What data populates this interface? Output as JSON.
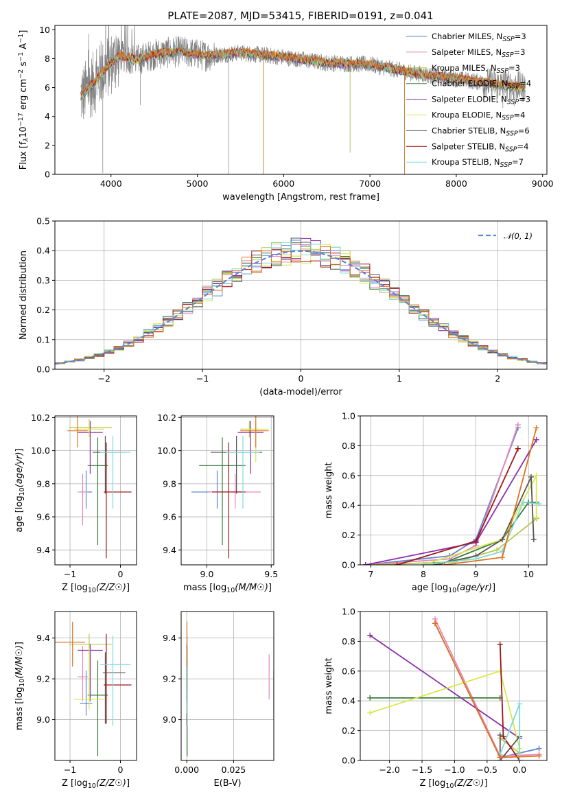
{
  "figure": {
    "title": "PLATE=2087, MJD=53415, FIBERID=0191, z=0.041"
  },
  "colors": {
    "Chabrier MILES": "#5b84d6",
    "Salpeter MILES": "#e887b5",
    "Kroupa MILES": "#b5c94a",
    "Chabrier ELODIE": "#3a7a3a",
    "Salpeter ELODIE": "#8d2ca8",
    "Kroupa ELODIE": "#d7e84a",
    "Chabrier STELIB": "#555555",
    "Salpeter STELIB": "#a01616",
    "Kroupa STELIB": "#7fd9d9",
    "data": "#808080",
    "extra_orange": "#e0701c"
  },
  "chart_data": [
    {
      "id": "spectrum",
      "type": "line",
      "title": "PLATE=2087, MJD=53415, FIBERID=0191, z=0.041",
      "xlabel": "wavelength [Angstrom, rest frame]",
      "ylabel": "Flux [f_λ10^-17 erg cm^-2 s^-1 A^-1]",
      "xlim": [
        3350,
        9050
      ],
      "ylim": [
        0,
        10.3
      ],
      "xticks": [
        "4000",
        "5000",
        "6000",
        "7000",
        "8000",
        "9000"
      ],
      "yticks": [
        "0",
        "2",
        "4",
        "6",
        "8",
        "10"
      ],
      "legend_position": "top-right",
      "legend": [
        "Chabrier MILES, N_SSP=3",
        "Salpeter MILES, N_SSP=3",
        "Kroupa MILES, N_SSP=3",
        "Chabrier ELODIE, N_SSP=4",
        "Salpeter ELODIE, N_SSP=3",
        "Kroupa ELODIE, N_SSP=4",
        "Chabrier STELIB, N_SSP=6",
        "Salpeter STELIB, N_SSP=4",
        "Kroupa STELIB, N_SSP=7"
      ],
      "continuum_points": [
        [
          3650,
          5.4
        ],
        [
          3800,
          6.3
        ],
        [
          3950,
          7.4
        ],
        [
          4100,
          8.2
        ],
        [
          4300,
          7.9
        ],
        [
          4500,
          8.3
        ],
        [
          4800,
          8.5
        ],
        [
          5100,
          8.2
        ],
        [
          5500,
          8.4
        ],
        [
          6000,
          8.1
        ],
        [
          6500,
          7.7
        ],
        [
          7000,
          7.6
        ],
        [
          7500,
          7.0
        ],
        [
          8000,
          6.6
        ],
        [
          8500,
          6.2
        ],
        [
          8800,
          6.0
        ]
      ],
      "dips": [
        [
          3905,
          0.1
        ],
        [
          4340,
          4.8
        ],
        [
          5365,
          0.0
        ],
        [
          5765,
          0.0
        ],
        [
          6770,
          1.5
        ],
        [
          7400,
          0.0
        ],
        [
          8470,
          5.0
        ],
        [
          8540,
          4.6
        ],
        [
          8670,
          4.7
        ]
      ]
    },
    {
      "id": "residuals",
      "type": "histogram",
      "xlabel": "(data-model)/error",
      "ylabel": "Normed distribution",
      "xlim": [
        -2.5,
        2.5
      ],
      "ylim": [
        0,
        0.5
      ],
      "xticks": [
        "−2",
        "−1",
        "0",
        "1",
        "2"
      ],
      "yticks": [
        "0.0",
        "0.1",
        "0.2",
        "0.3",
        "0.4",
        "0.5"
      ],
      "bin_width": 0.1,
      "legend_position": "top-right",
      "legend": [
        "𝒩(0, 1)"
      ],
      "reference": "N(0,1) gaussian"
    },
    {
      "id": "age_vs_Z",
      "type": "errorbar",
      "xlabel": "Z [log10(Z/Z☉)]",
      "ylabel": "age [log10(age/yr)]",
      "xlim": [
        -1.3,
        0.32
      ],
      "ylim": [
        9.31,
        10.21
      ],
      "xticks": [
        "−1",
        "0"
      ],
      "yticks": [
        "9.4",
        "9.6",
        "9.8",
        "10.0",
        "10.2"
      ],
      "points": [
        {
          "model": "Chabrier MILES",
          "x": -0.68,
          "xerr": [
            0.12,
            0.12
          ],
          "y": 9.75,
          "yerr": [
            0.1,
            0.13
          ]
        },
        {
          "model": "Salpeter MILES",
          "x": -0.75,
          "xerr": [
            0.1,
            0.1
          ],
          "y": 9.75,
          "yerr": [
            0.2,
            0.11
          ]
        },
        {
          "model": "Kroupa MILES",
          "x": -0.62,
          "xerr": [
            0.4,
            0.45
          ],
          "y": 10.14,
          "yerr": [
            0.05,
            0.05
          ]
        },
        {
          "model": "Chabrier ELODIE",
          "x": -0.45,
          "xerr": [
            0.2,
            0.2
          ],
          "y": 9.91,
          "yerr": [
            0.48,
            0.17
          ]
        },
        {
          "model": "Salpeter ELODIE",
          "x": -0.6,
          "xerr": [
            0.25,
            0.25
          ],
          "y": 10.11,
          "yerr": [
            0.25,
            0.07
          ]
        },
        {
          "model": "Kroupa ELODIE",
          "x": -0.62,
          "xerr": [
            0.3,
            0.3
          ],
          "y": 10.13,
          "yerr": [
            0.05,
            0.05
          ]
        },
        {
          "model": "Chabrier STELIB",
          "x": -0.3,
          "xerr": [
            0.25,
            0.4
          ],
          "y": 9.99,
          "yerr": [
            0.25,
            0.1
          ]
        },
        {
          "model": "Salpeter STELIB",
          "x": -0.28,
          "xerr": [
            0.05,
            0.5
          ],
          "y": 9.75,
          "yerr": [
            0.4,
            0.3
          ]
        },
        {
          "model": "Kroupa STELIB",
          "x": -0.15,
          "xerr": [
            0.25,
            0.35
          ],
          "y": 9.99,
          "yerr": [
            0.34,
            0.1
          ]
        },
        {
          "model": "extra_orange",
          "x": -0.85,
          "xerr": [
            0.2,
            0.2
          ],
          "y": 10.12,
          "yerr": [
            0.1,
            0.1
          ]
        }
      ]
    },
    {
      "id": "age_vs_mass",
      "type": "errorbar",
      "xlabel": "mass [log10(M/M☉)]",
      "ylabel": "",
      "xlim": [
        8.8,
        9.52
      ],
      "ylim": [
        9.31,
        10.21
      ],
      "xticks": [
        "9.0",
        "9.5"
      ],
      "yticks": [
        "9.4",
        "9.6",
        "9.8",
        "10.0",
        "10.2"
      ],
      "points": [
        {
          "model": "Chabrier MILES",
          "x": 9.08,
          "xerr": [
            0.2,
            0.2
          ],
          "y": 9.75,
          "yerr": [
            0.1,
            0.13
          ]
        },
        {
          "model": "Salpeter MILES",
          "x": 9.22,
          "xerr": [
            0.2,
            0.2
          ],
          "y": 9.75,
          "yerr": [
            0.1,
            0.11
          ]
        },
        {
          "model": "Kroupa MILES",
          "x": 9.33,
          "xerr": [
            0.07,
            0.07
          ],
          "y": 10.13,
          "yerr": [
            0.05,
            0.05
          ]
        },
        {
          "model": "Chabrier ELODIE",
          "x": 9.12,
          "xerr": [
            0.18,
            0.18
          ],
          "y": 9.91,
          "yerr": [
            0.48,
            0.17
          ]
        },
        {
          "model": "Salpeter ELODIE",
          "x": 9.34,
          "xerr": [
            0.1,
            0.1
          ],
          "y": 10.11,
          "yerr": [
            0.25,
            0.07
          ]
        },
        {
          "model": "Kroupa ELODIE",
          "x": 9.38,
          "xerr": [
            0.1,
            0.1
          ],
          "y": 10.13,
          "yerr": [
            0.2,
            0.05
          ]
        },
        {
          "model": "Chabrier STELIB",
          "x": 9.23,
          "xerr": [
            0.2,
            0.2
          ],
          "y": 9.99,
          "yerr": [
            0.25,
            0.1
          ]
        },
        {
          "model": "Salpeter STELIB",
          "x": 9.17,
          "xerr": [
            0.13,
            0.13
          ],
          "y": 9.75,
          "yerr": [
            0.4,
            0.3
          ]
        },
        {
          "model": "Kroupa STELIB",
          "x": 9.28,
          "xerr": [
            0.13,
            0.13
          ],
          "y": 9.99,
          "yerr": [
            0.34,
            0.1
          ]
        },
        {
          "model": "extra_orange",
          "x": 9.38,
          "xerr": [
            0.12,
            0.1
          ],
          "y": 10.12,
          "yerr": [
            0.1,
            0.1
          ]
        }
      ]
    },
    {
      "id": "mass_weight_vs_age",
      "type": "line",
      "xlabel": "age [log10(age/yr)]",
      "ylabel": "mass weight",
      "xlim": [
        6.8,
        10.35
      ],
      "ylim": [
        0,
        1.0
      ],
      "xticks": [
        "7",
        "8",
        "9",
        "10"
      ],
      "yticks": [
        "0.0",
        "0.2",
        "0.4",
        "0.6",
        "0.8",
        "1.0"
      ],
      "series": [
        {
          "model": "Chabrier MILES",
          "x": [
            6.9,
            8.5,
            9.0,
            9.8
          ],
          "y": [
            0.0,
            0.06,
            0.17,
            0.92
          ]
        },
        {
          "model": "Salpeter MILES",
          "x": [
            6.9,
            8.5,
            9.0,
            9.8
          ],
          "y": [
            0.0,
            0.04,
            0.13,
            0.94
          ]
        },
        {
          "model": "Kroupa MILES",
          "x": [
            7.0,
            8.6,
            9.4,
            10.15
          ],
          "y": [
            0.0,
            0.02,
            0.1,
            0.31
          ]
        },
        {
          "model": "Chabrier ELODIE",
          "x": [
            8.3,
            9.5,
            10.0,
            10.15
          ],
          "y": [
            0.0,
            0.17,
            0.42,
            0.42
          ]
        },
        {
          "model": "Salpeter ELODIE",
          "x": [
            6.9,
            9.0,
            10.15
          ],
          "y": [
            0.0,
            0.15,
            0.84
          ]
        },
        {
          "model": "Kroupa ELODIE",
          "x": [
            8.0,
            9.5,
            10.15,
            10.15
          ],
          "y": [
            0.0,
            0.17,
            0.6,
            0.32
          ]
        },
        {
          "model": "Chabrier STELIB",
          "x": [
            8.2,
            9.0,
            9.5,
            10.05,
            10.1
          ],
          "y": [
            0.0,
            0.06,
            0.17,
            0.59,
            0.17
          ]
        },
        {
          "model": "Salpeter STELIB",
          "x": [
            7.5,
            9.0,
            9.8
          ],
          "y": [
            0.0,
            0.16,
            0.78
          ]
        },
        {
          "model": "Kroupa STELIB",
          "x": [
            8.0,
            9.0,
            9.5,
            9.9,
            10.2
          ],
          "y": [
            0.0,
            0.04,
            0.09,
            0.42,
            0.41
          ]
        },
        {
          "model": "extra_orange",
          "x": [
            8.4,
            9.5,
            10.15
          ],
          "y": [
            0.0,
            0.05,
            0.92
          ]
        }
      ]
    },
    {
      "id": "mass_vs_Z",
      "type": "errorbar",
      "xlabel": "Z [log10(Z/Z☉)]",
      "ylabel": "mass [log10(M/M☉)]",
      "xlim": [
        -1.3,
        0.32
      ],
      "ylim": [
        8.8,
        9.53
      ],
      "xticks": [
        "−1",
        "0"
      ],
      "yticks": [
        "9.0",
        "9.2",
        "9.4"
      ],
      "points": [
        {
          "model": "Chabrier MILES",
          "x": -0.68,
          "xerr": [
            0.12,
            0.12
          ],
          "y": 9.08,
          "yerr": [
            0.06,
            0.16
          ]
        },
        {
          "model": "Salpeter MILES",
          "x": -0.75,
          "xerr": [
            0.1,
            0.1
          ],
          "y": 9.21,
          "yerr": [
            0.12,
            0.15
          ]
        },
        {
          "model": "Kroupa MILES",
          "x": -0.62,
          "xerr": [
            0.4,
            0.45
          ],
          "y": 9.37,
          "yerr": [
            0.05,
            0.05
          ]
        },
        {
          "model": "Chabrier ELODIE",
          "x": -0.45,
          "xerr": [
            0.2,
            0.2
          ],
          "y": 9.12,
          "yerr": [
            0.3,
            0.17
          ]
        },
        {
          "model": "Salpeter ELODIE",
          "x": -0.6,
          "xerr": [
            0.25,
            0.25
          ],
          "y": 9.34,
          "yerr": [
            0.25,
            0.03
          ]
        },
        {
          "model": "Kroupa ELODIE",
          "x": -0.62,
          "xerr": [
            0.3,
            0.3
          ],
          "y": 9.1,
          "yerr": [
            0.05,
            0.25
          ]
        },
        {
          "model": "Chabrier STELIB",
          "x": -0.3,
          "xerr": [
            0.05,
            0.4
          ],
          "y": 9.23,
          "yerr": [
            0.25,
            0.1
          ]
        },
        {
          "model": "Salpeter STELIB",
          "x": -0.28,
          "xerr": [
            0.05,
            0.5
          ],
          "y": 9.17,
          "yerr": [
            0.19,
            0.25
          ]
        },
        {
          "model": "Kroupa STELIB",
          "x": -0.15,
          "xerr": [
            0.25,
            0.35
          ],
          "y": 9.27,
          "yerr": [
            0.3,
            0.14
          ]
        },
        {
          "model": "extra_orange",
          "x": -0.95,
          "xerr": [
            0.35,
            0.25
          ],
          "y": 9.38,
          "yerr": [
            0.12,
            0.1
          ]
        }
      ]
    },
    {
      "id": "mass_vs_ebv",
      "type": "errorbar",
      "xlabel": "E(B-V)",
      "ylabel": "",
      "xlim": [
        -0.003,
        0.0465
      ],
      "ylim": [
        8.8,
        9.53
      ],
      "xticks": [
        "0.000",
        "0.025"
      ],
      "yticks": [
        "9.0",
        "9.2",
        "9.4"
      ],
      "points": [
        {
          "model": "Chabrier MILES",
          "x": 0.0465,
          "xerr": [
            0,
            0
          ],
          "y": 9.13,
          "yerr": [
            0.12,
            0.11
          ]
        },
        {
          "model": "Salpeter MILES",
          "x": 0.044,
          "xerr": [
            0,
            0
          ],
          "y": 9.22,
          "yerr": [
            0.12,
            0.1
          ]
        },
        {
          "model": "Kroupa MILES",
          "x": 0.0003,
          "xerr": [
            0,
            0
          ],
          "y": 9.26,
          "yerr": [
            0.12,
            0.1
          ]
        },
        {
          "model": "Chabrier ELODIE",
          "x": 0.0002,
          "xerr": [
            0,
            0
          ],
          "y": 9.12,
          "yerr": [
            0.3,
            0.17
          ]
        },
        {
          "model": "Salpeter ELODIE",
          "x": 0.0,
          "xerr": [
            0,
            0
          ],
          "y": 9.34,
          "yerr": [
            0.25,
            0.03
          ]
        },
        {
          "model": "Kroupa ELODIE",
          "x": 0.0001,
          "xerr": [
            0,
            0
          ],
          "y": 9.1,
          "yerr": [
            0.05,
            0.25
          ]
        },
        {
          "model": "Chabrier STELIB",
          "x": 0.0001,
          "xerr": [
            0,
            0
          ],
          "y": 9.23,
          "yerr": [
            0.25,
            0.1
          ]
        },
        {
          "model": "Salpeter STELIB",
          "x": 0.0,
          "xerr": [
            0,
            0
          ],
          "y": 9.0,
          "yerr": [
            0.03,
            0.03
          ]
        },
        {
          "model": "Kroupa STELIB",
          "x": 0.0002,
          "xerr": [
            0,
            0
          ],
          "y": 9.27,
          "yerr": [
            0.3,
            0.14
          ]
        },
        {
          "model": "extra_orange",
          "x": 0.0001,
          "xerr": [
            0,
            0
          ],
          "y": 9.38,
          "yerr": [
            0.12,
            0.1
          ]
        }
      ]
    },
    {
      "id": "mass_weight_vs_Z",
      "type": "line",
      "xlabel": "Z [log10(Z/Z☉)]",
      "ylabel": "mass weight",
      "xlim": [
        -2.45,
        0.42
      ],
      "ylim": [
        0,
        1.0
      ],
      "xticks": [
        "−2.0",
        "−1.5",
        "−1.0",
        "−0.5",
        "0.0"
      ],
      "yticks": [
        "0.0",
        "0.2",
        "0.4",
        "0.6",
        "0.8",
        "1.0"
      ],
      "series": [
        {
          "model": "Chabrier MILES",
          "x": [
            -1.3,
            -0.3,
            0.3
          ],
          "y": [
            0.92,
            0.02,
            0.08
          ]
        },
        {
          "model": "Salpeter MILES",
          "x": [
            -1.3,
            -0.3,
            0.3
          ],
          "y": [
            0.95,
            0.03,
            0.04
          ]
        },
        {
          "model": "Kroupa MILES",
          "x": [
            -0.3,
            0.0
          ],
          "y": [
            0.15,
            0.05
          ]
        },
        {
          "model": "Chabrier ELODIE",
          "x": [
            -2.3,
            -0.3
          ],
          "y": [
            0.42,
            0.42
          ]
        },
        {
          "model": "Salpeter ELODIE",
          "x": [
            -2.3,
            0.0
          ],
          "y": [
            0.84,
            0.15
          ]
        },
        {
          "model": "Kroupa ELODIE",
          "x": [
            -2.3,
            -0.3,
            0.0
          ],
          "y": [
            0.32,
            0.6,
            0.08
          ]
        },
        {
          "model": "Chabrier STELIB",
          "x": [
            -0.3,
            -0.3,
            0.0
          ],
          "y": [
            0.17,
            0.0,
            0.16
          ]
        },
        {
          "model": "Salpeter STELIB",
          "x": [
            -0.3,
            -0.25,
            0.0
          ],
          "y": [
            0.78,
            0.16,
            0.0
          ]
        },
        {
          "model": "Kroupa STELIB",
          "x": [
            -0.3,
            0.0,
            0.0
          ],
          "y": [
            0.04,
            0.38,
            0.0
          ]
        },
        {
          "model": "extra_orange",
          "x": [
            -1.3,
            -0.3,
            0.3
          ],
          "y": [
            0.92,
            0.02,
            0.03
          ]
        }
      ]
    }
  ]
}
